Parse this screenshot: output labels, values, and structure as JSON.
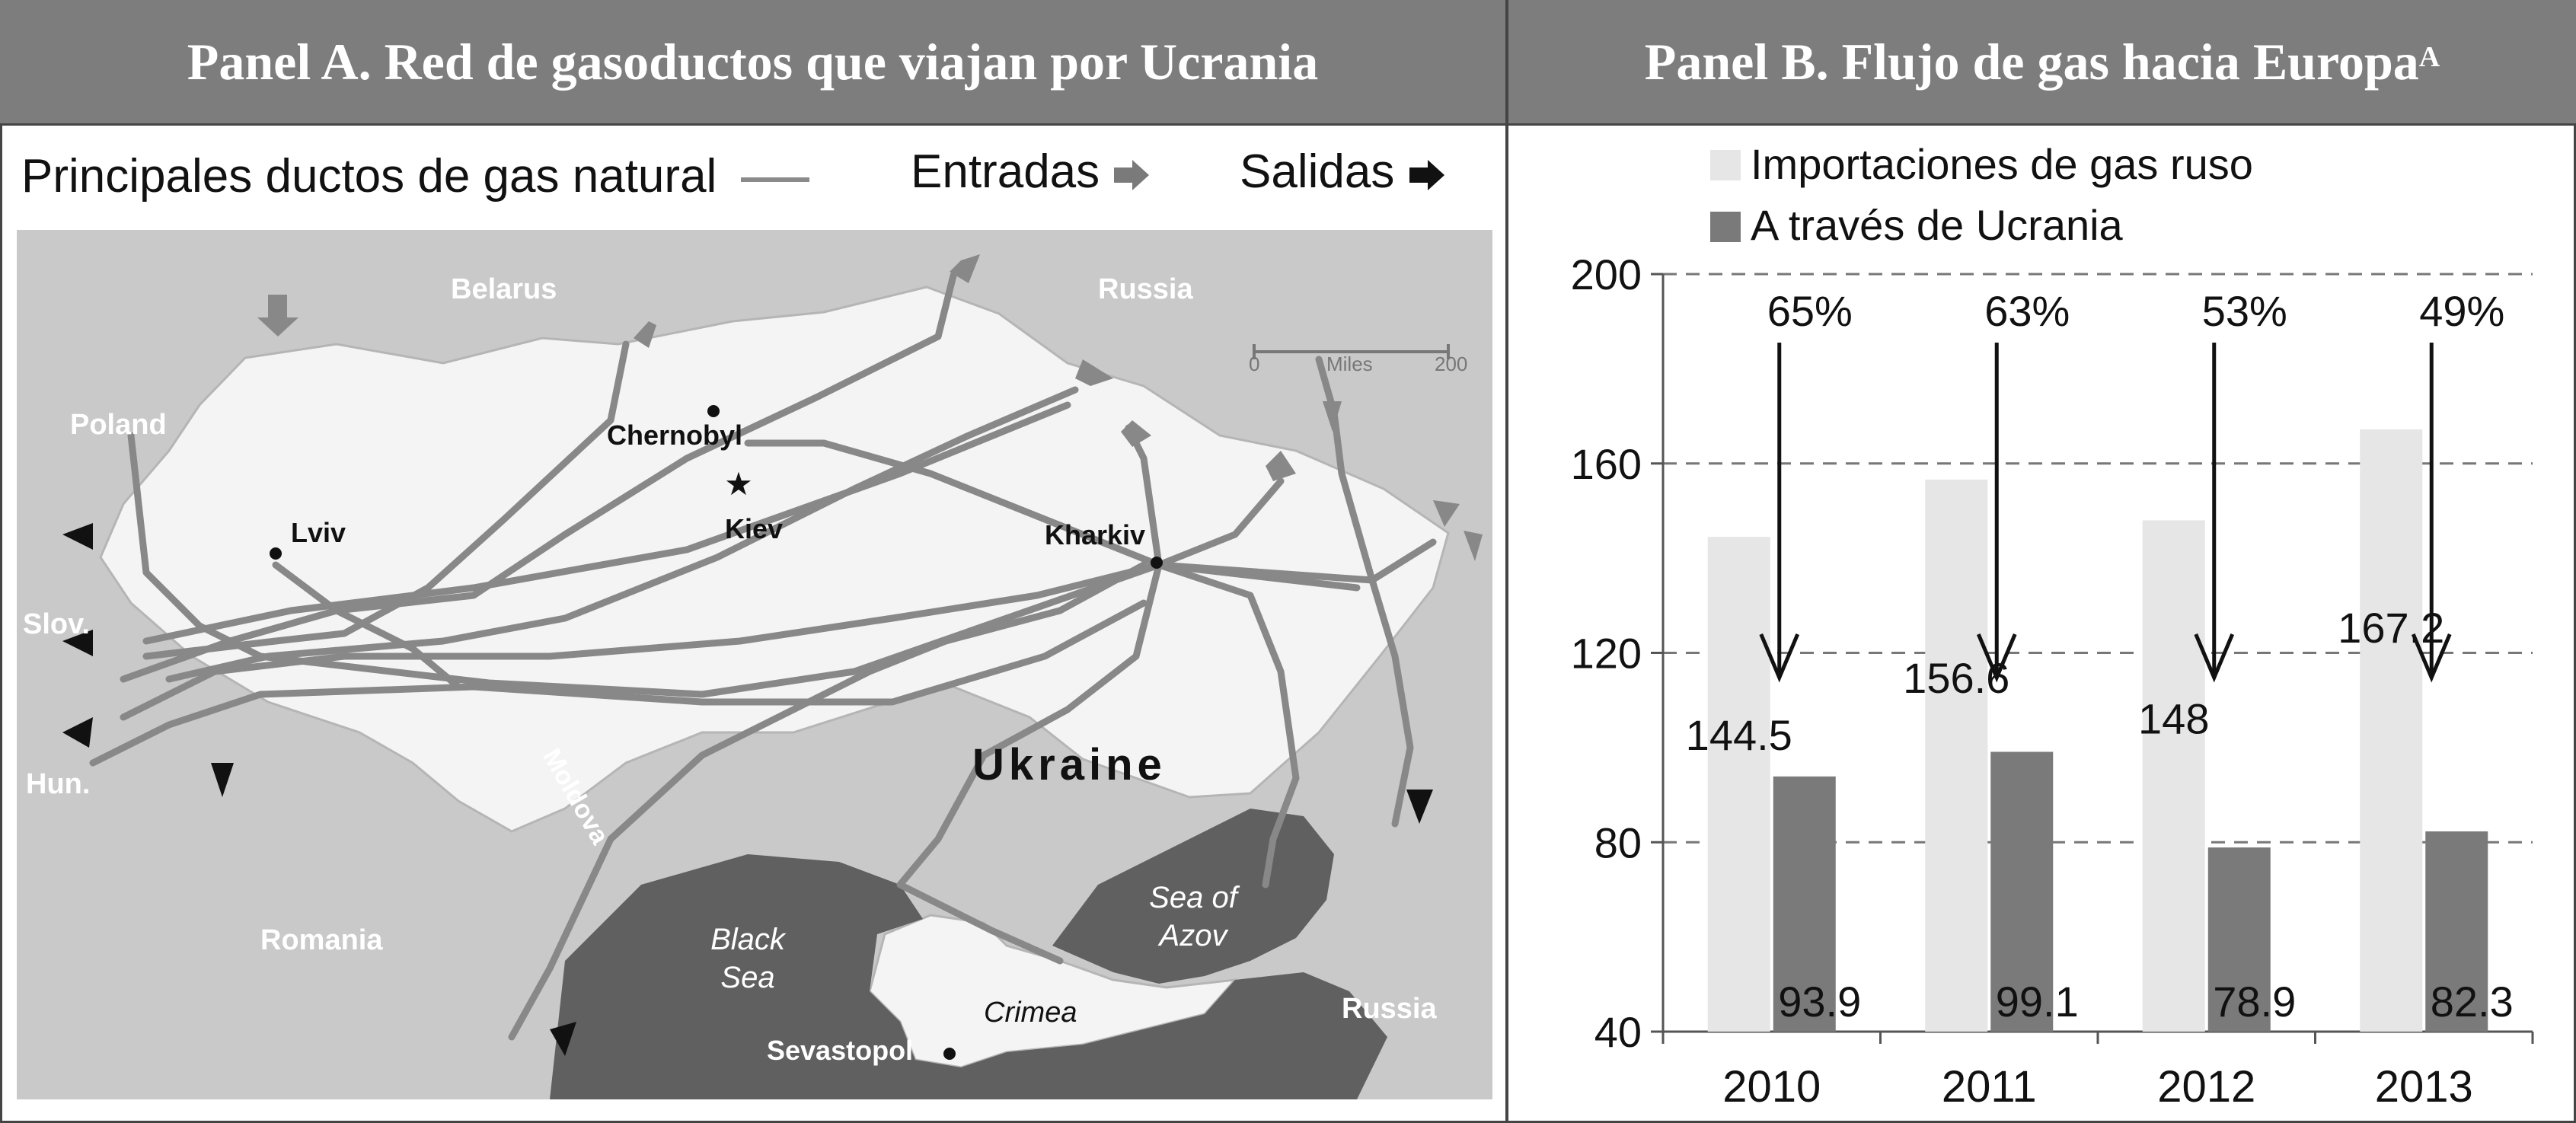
{
  "panel_a": {
    "title": "Panel A. Red de gasoductos que viajan por Ucrania",
    "legend": {
      "pipelines_label": "Principales ductos de gas natural",
      "entries_label": "Entradas",
      "exits_label": "Salidas"
    },
    "map": {
      "scale_label_start": "0",
      "scale_label_mid": "Miles",
      "scale_label_end": "200",
      "countries": [
        "Belarus",
        "Russia",
        "Poland",
        "Slov.",
        "Hun.",
        "Moldova",
        "Romania",
        "Ukraine",
        "Russia"
      ],
      "cities": [
        "Chernobyl",
        "Kiev",
        "Lviv",
        "Kharkiv",
        "Sevastopol"
      ],
      "water": [
        "Black Sea",
        "Sea of Azov"
      ],
      "regions": [
        "Crimea"
      ]
    }
  },
  "panel_b": {
    "title": "Panel B. Flujo de gas hacia Europa",
    "title_sup": "A",
    "chart_data": {
      "type": "bar",
      "categories": [
        "2010",
        "2011",
        "2012",
        "2013"
      ],
      "series": [
        {
          "name": "Importaciones de gas ruso",
          "values": [
            144.5,
            156.6,
            148,
            167.2
          ],
          "color": "#e6e6e6"
        },
        {
          "name": "A través de Ucrania",
          "values": [
            93.9,
            99.1,
            78.9,
            82.3
          ],
          "color": "#7a7a7a"
        }
      ],
      "value_labels_light": [
        "144.5",
        "156.6",
        "148",
        "167.2"
      ],
      "value_labels_dark": [
        "93.9",
        "99.1",
        "78.9",
        "82.3"
      ],
      "annotations": [
        "65%",
        "63%",
        "53%",
        "49%"
      ],
      "ylim": [
        40,
        200
      ],
      "yticks": [
        40,
        80,
        120,
        160,
        200
      ],
      "grid": true,
      "legend": "top-left"
    }
  }
}
